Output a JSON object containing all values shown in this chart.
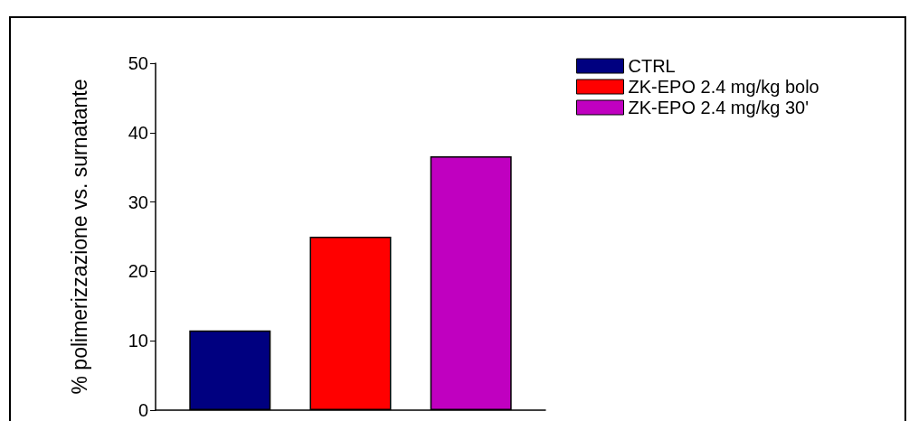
{
  "chart_data": {
    "type": "bar",
    "ylabel": "% polimerizzazione vs. surnatante",
    "categories": [
      null
    ],
    "series": [
      {
        "name": "CTRL",
        "color": "#000080",
        "values": [
          11.5
        ]
      },
      {
        "name": "ZK-EPO 2.4 mg/kg bolo",
        "color": "#ff0000",
        "values": [
          25.0
        ]
      },
      {
        "name": "ZK-EPO 2.4 mg/kg 30'",
        "color": "#c000c0",
        "values": [
          36.6
        ]
      }
    ],
    "ylim": [
      0,
      50
    ],
    "yticks": [
      0,
      10,
      20,
      30,
      40,
      50
    ],
    "grid": false,
    "legend": "top right"
  }
}
